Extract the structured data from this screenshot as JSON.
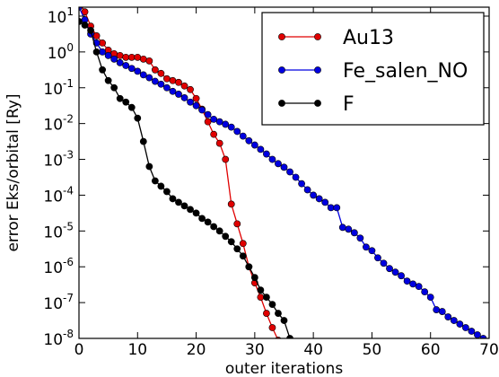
{
  "chart_data": {
    "type": "line",
    "xlabel": "outer iterations",
    "ylabel": "error Eks/orbital [Ry]",
    "xlim": [
      0,
      70
    ],
    "ylim_exponent": [
      -8,
      1.25
    ],
    "yscale": "log",
    "legend_position": "top-right",
    "x_ticks": [
      {
        "value": 0,
        "label": "0"
      },
      {
        "value": 10,
        "label": "10"
      },
      {
        "value": 20,
        "label": "20"
      },
      {
        "value": 30,
        "label": "30"
      },
      {
        "value": 40,
        "label": "40"
      },
      {
        "value": 50,
        "label": "50"
      },
      {
        "value": 60,
        "label": "60"
      },
      {
        "value": 70,
        "label": "70"
      }
    ],
    "y_ticks": [
      {
        "exp": 1,
        "base": "10",
        "sup": "1"
      },
      {
        "exp": 0,
        "base": "10",
        "sup": "0"
      },
      {
        "exp": -1,
        "base": "10",
        "sup": "-1"
      },
      {
        "exp": -2,
        "base": "10",
        "sup": "-2"
      },
      {
        "exp": -3,
        "base": "10",
        "sup": "-3"
      },
      {
        "exp": -4,
        "base": "10",
        "sup": "-4"
      },
      {
        "exp": -5,
        "base": "10",
        "sup": "-5"
      },
      {
        "exp": -6,
        "base": "10",
        "sup": "-6"
      },
      {
        "exp": -7,
        "base": "10",
        "sup": "-7"
      },
      {
        "exp": -8,
        "base": "10",
        "sup": "-8"
      }
    ],
    "series": [
      {
        "name": "Au13",
        "color": "#e00000",
        "x": [
          0,
          1,
          2,
          3,
          4,
          5,
          6,
          7,
          8,
          9,
          10,
          11,
          12,
          13,
          14,
          15,
          16,
          17,
          18,
          19,
          20,
          21,
          22,
          23,
          24,
          25,
          26,
          27,
          28,
          29,
          30,
          31,
          32,
          33,
          34
        ],
        "log10_y": [
          1.4,
          1.12,
          0.72,
          0.45,
          0.25,
          0.05,
          -0.05,
          -0.1,
          -0.15,
          -0.15,
          -0.15,
          -0.2,
          -0.25,
          -0.5,
          -0.6,
          -0.75,
          -0.8,
          -0.85,
          -0.95,
          -1.05,
          -1.3,
          -1.6,
          -1.95,
          -2.3,
          -2.55,
          -3.0,
          -4.25,
          -4.8,
          -5.35,
          -6.0,
          -6.45,
          -6.85,
          -7.3,
          -7.7,
          -8.05
        ]
      },
      {
        "name": "Fe_salen_NO",
        "color": "#0000e0",
        "x": [
          0,
          1,
          2,
          3,
          4,
          5,
          6,
          7,
          8,
          9,
          10,
          11,
          12,
          13,
          14,
          15,
          16,
          17,
          18,
          19,
          20,
          21,
          22,
          23,
          24,
          25,
          26,
          27,
          28,
          29,
          30,
          31,
          32,
          33,
          34,
          35,
          36,
          37,
          38,
          39,
          40,
          41,
          42,
          43,
          44,
          45,
          46,
          47,
          48,
          49,
          50,
          51,
          52,
          53,
          54,
          55,
          56,
          57,
          58,
          59,
          60,
          61,
          62,
          63,
          64,
          65,
          66,
          67,
          68,
          69,
          70
        ],
        "log10_y": [
          1.25,
          0.9,
          0.5,
          0.25,
          0.0,
          -0.1,
          -0.2,
          -0.3,
          -0.38,
          -0.46,
          -0.54,
          -0.64,
          -0.72,
          -0.82,
          -0.9,
          -1.0,
          -1.1,
          -1.18,
          -1.28,
          -1.4,
          -1.5,
          -1.62,
          -1.75,
          -1.88,
          -1.95,
          -2.02,
          -2.1,
          -2.22,
          -2.35,
          -2.48,
          -2.6,
          -2.72,
          -2.85,
          -3.0,
          -3.12,
          -3.22,
          -3.35,
          -3.5,
          -3.68,
          -3.85,
          -4.0,
          -4.1,
          -4.2,
          -4.35,
          -4.35,
          -4.9,
          -4.95,
          -5.05,
          -5.2,
          -5.45,
          -5.55,
          -5.75,
          -5.9,
          -6.05,
          -6.15,
          -6.25,
          -6.4,
          -6.48,
          -6.55,
          -6.7,
          -6.85,
          -7.2,
          -7.25,
          -7.4,
          -7.5,
          -7.6,
          -7.7,
          -7.8,
          -7.9,
          -8.0,
          -8.1
        ]
      },
      {
        "name": "F",
        "color": "#000000",
        "x": [
          0,
          1,
          2,
          3,
          4,
          5,
          6,
          7,
          8,
          9,
          10,
          11,
          12,
          13,
          14,
          15,
          16,
          17,
          18,
          19,
          20,
          21,
          22,
          23,
          24,
          25,
          26,
          27,
          28,
          29,
          30,
          31,
          32,
          33,
          34,
          35,
          36
        ],
        "log10_y": [
          0.85,
          0.75,
          0.6,
          0.0,
          -0.5,
          -0.8,
          -1.0,
          -1.3,
          -1.4,
          -1.55,
          -1.85,
          -2.5,
          -3.2,
          -3.6,
          -3.75,
          -3.9,
          -4.1,
          -4.2,
          -4.3,
          -4.4,
          -4.5,
          -4.65,
          -4.75,
          -4.88,
          -5.0,
          -5.15,
          -5.3,
          -5.5,
          -5.7,
          -6.0,
          -6.3,
          -6.65,
          -6.85,
          -7.05,
          -7.3,
          -7.5,
          -8.0
        ]
      }
    ]
  }
}
